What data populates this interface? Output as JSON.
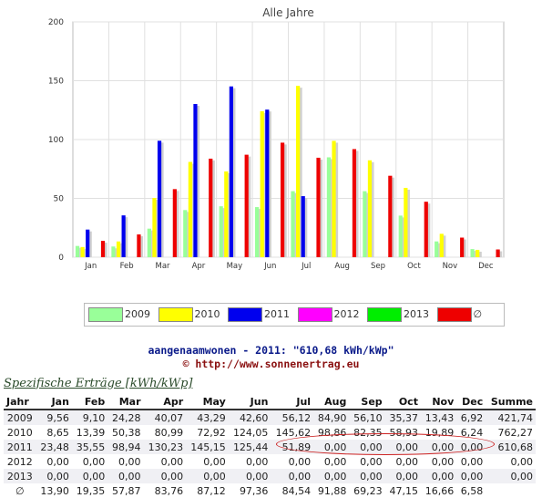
{
  "chart_data": {
    "type": "bar",
    "title": "Alle Jahre",
    "categories": [
      "Jan",
      "Feb",
      "Mar",
      "Apr",
      "May",
      "Jun",
      "Jul",
      "Aug",
      "Sep",
      "Oct",
      "Nov",
      "Dec"
    ],
    "ylim": [
      0,
      200
    ],
    "yticks": [
      0,
      50,
      100,
      150,
      200
    ],
    "grid": true,
    "series": [
      {
        "name": "2009",
        "color": "#99ff99",
        "values": [
          9.56,
          9.1,
          24.28,
          40.07,
          43.29,
          42.6,
          56.12,
          84.9,
          56.1,
          35.37,
          13.43,
          6.92
        ]
      },
      {
        "name": "2010",
        "color": "#ffff00",
        "values": [
          8.65,
          13.39,
          50.38,
          80.99,
          72.92,
          124.05,
          145.62,
          98.86,
          82.35,
          58.93,
          19.89,
          6.24
        ]
      },
      {
        "name": "2011",
        "color": "#0000ee",
        "values": [
          23.48,
          35.55,
          98.94,
          130.23,
          145.15,
          125.44,
          51.89,
          0,
          0,
          0,
          0,
          0
        ]
      },
      {
        "name": "2012",
        "color": "#ff00ff",
        "values": [
          0,
          0,
          0,
          0,
          0,
          0,
          0,
          0,
          0,
          0,
          0,
          0
        ]
      },
      {
        "name": "2013",
        "color": "#00ee00",
        "values": [
          0,
          0,
          0,
          0,
          0,
          0,
          0,
          0,
          0,
          0,
          0,
          0
        ]
      },
      {
        "name": "∅",
        "color": "#ee0000",
        "values": [
          13.9,
          19.35,
          57.87,
          83.76,
          87.12,
          97.36,
          84.54,
          91.88,
          69.23,
          47.15,
          16.66,
          6.58
        ]
      }
    ]
  },
  "caption": {
    "line1": "aangenaamwonen - 2011: \"610,68 kWh/kWp\"",
    "line2": "© http://www.sonnenertrag.eu"
  },
  "table": {
    "title": "Spezifische Erträge [kWh/kWp]",
    "headers": [
      "Jahr",
      "Jan",
      "Feb",
      "Mar",
      "Apr",
      "May",
      "Jun",
      "Jul",
      "Aug",
      "Sep",
      "Oct",
      "Nov",
      "Dec",
      "Summe"
    ],
    "rows": [
      [
        "2009",
        "9,56",
        "9,10",
        "24,28",
        "40,07",
        "43,29",
        "42,60",
        "56,12",
        "84,90",
        "56,10",
        "35,37",
        "13,43",
        "6,92",
        "421,74"
      ],
      [
        "2010",
        "8,65",
        "13,39",
        "50,38",
        "80,99",
        "72,92",
        "124,05",
        "145,62",
        "98,86",
        "82,35",
        "58,93",
        "19,89",
        "6,24",
        "762,27"
      ],
      [
        "2011",
        "23,48",
        "35,55",
        "98,94",
        "130,23",
        "145,15",
        "125,44",
        "51,89",
        "0,00",
        "0,00",
        "0,00",
        "0,00",
        "0,00",
        "610,68"
      ],
      [
        "2012",
        "0,00",
        "0,00",
        "0,00",
        "0,00",
        "0,00",
        "0,00",
        "0,00",
        "0,00",
        "0,00",
        "0,00",
        "0,00",
        "0,00",
        "0,00"
      ],
      [
        "2013",
        "0,00",
        "0,00",
        "0,00",
        "0,00",
        "0,00",
        "0,00",
        "0,00",
        "0,00",
        "0,00",
        "0,00",
        "0,00",
        "0,00",
        "0,00"
      ],
      [
        "∅",
        "13,90",
        "19,35",
        "57,87",
        "83,76",
        "87,12",
        "97,36",
        "84,54",
        "91,88",
        "69,23",
        "47,15",
        "16,66",
        "6,58",
        ""
      ]
    ]
  }
}
